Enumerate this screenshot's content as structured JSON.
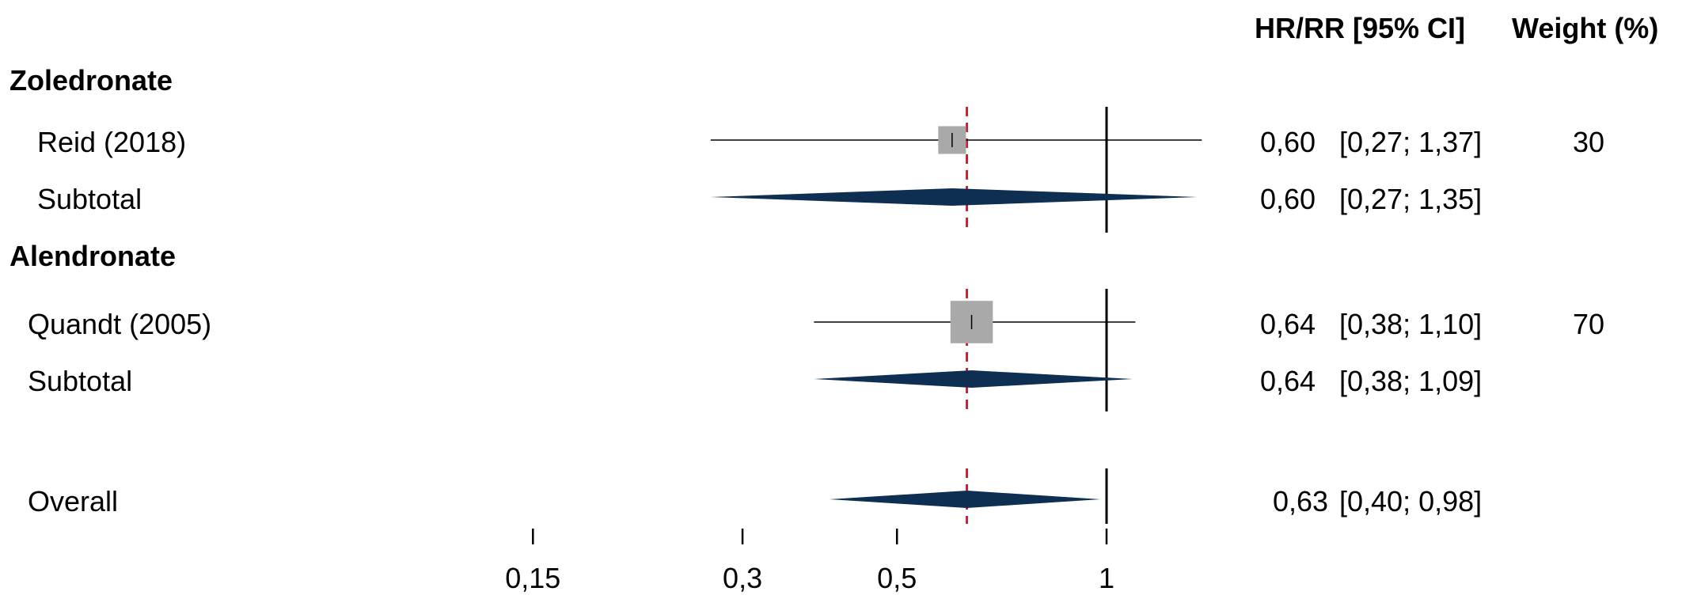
{
  "header": {
    "effect_col": "HR/RR [95% CI]",
    "weight_col": "Weight (%)"
  },
  "groups": [
    {
      "name": "Zoledronate",
      "studies": [
        {
          "label": "Reid (2018)",
          "est": "0,60",
          "ci": "[0,27; 1,37]",
          "weight": "30"
        }
      ],
      "subtotal": {
        "label": "Subtotal",
        "est": "0,60",
        "ci": "[0,27; 1,35]"
      }
    },
    {
      "name": "Alendronate",
      "studies": [
        {
          "label": "Quandt (2005)",
          "est": "0,64",
          "ci": "[0,38; 1,10]",
          "weight": "70"
        }
      ],
      "subtotal": {
        "label": "Subtotal",
        "est": "0,64",
        "ci": "[0,38; 1,09]"
      }
    }
  ],
  "overall": {
    "label": "Overall",
    "est": "0,63",
    "ci": "[0,40; 0,98]"
  },
  "axis": {
    "ticks": [
      {
        "value": 0.15,
        "label": "0,15"
      },
      {
        "value": 0.3,
        "label": "0,3"
      },
      {
        "value": 0.5,
        "label": "0,5"
      },
      {
        "value": 1,
        "label": "1"
      }
    ]
  },
  "colors": {
    "diamond": "#0f2f52",
    "box": "#a9a9a9",
    "pooled_line": "#c0283a",
    "axis": "#000000"
  },
  "chart_data": {
    "type": "forest",
    "scale": "log",
    "null_value": 1,
    "pooled_estimate": 0.63,
    "rows": [
      {
        "kind": "study",
        "group": "Zoledronate",
        "label": "Reid (2018)",
        "estimate": 0.6,
        "lower": 0.27,
        "upper": 1.37,
        "weight": 30
      },
      {
        "kind": "subtotal",
        "group": "Zoledronate",
        "label": "Subtotal",
        "estimate": 0.6,
        "lower": 0.27,
        "upper": 1.35
      },
      {
        "kind": "study",
        "group": "Alendronate",
        "label": "Quandt (2005)",
        "estimate": 0.64,
        "lower": 0.38,
        "upper": 1.1,
        "weight": 70
      },
      {
        "kind": "subtotal",
        "group": "Alendronate",
        "label": "Subtotal",
        "estimate": 0.64,
        "lower": 0.38,
        "upper": 1.09
      },
      {
        "kind": "overall",
        "label": "Overall",
        "estimate": 0.63,
        "lower": 0.4,
        "upper": 0.98
      }
    ]
  }
}
